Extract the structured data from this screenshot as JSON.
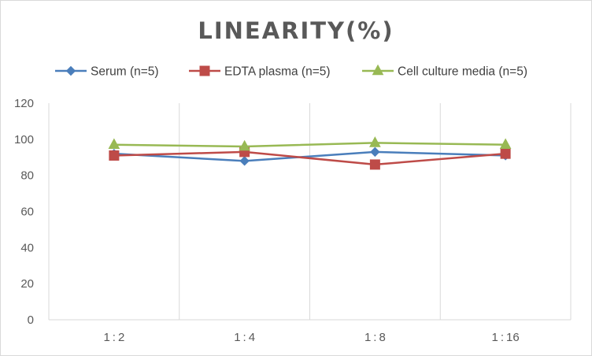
{
  "chart_data": {
    "type": "line",
    "title": "LINEARITY(%)",
    "xlabel": "",
    "ylabel": "",
    "categories": [
      "1:2",
      "1:4",
      "1:8",
      "1:16"
    ],
    "ylim": [
      0,
      120
    ],
    "yticks": [
      0,
      20,
      40,
      60,
      80,
      100,
      120
    ],
    "grid": "vertical",
    "legend_position": "top",
    "series": [
      {
        "name": "Serum (n=5)",
        "values": [
          92,
          88,
          93,
          91
        ],
        "color": "#4a7ebb",
        "marker": "diamond"
      },
      {
        "name": "EDTA plasma (n=5)",
        "values": [
          91,
          93,
          86,
          92
        ],
        "color": "#be4b48",
        "marker": "square"
      },
      {
        "name": "Cell culture media (n=5)",
        "values": [
          97,
          96,
          98,
          97
        ],
        "color": "#98b954",
        "marker": "triangle"
      }
    ]
  }
}
